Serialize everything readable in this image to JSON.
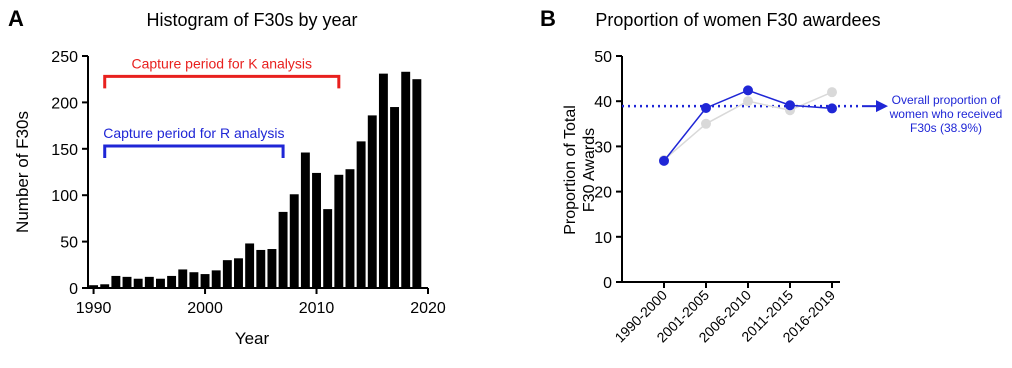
{
  "chart_data": [
    {
      "panel_label": "A",
      "type": "bar",
      "title": "Histogram of F30s by year",
      "xlabel": "Year",
      "ylabel": "Number of F30s",
      "xlim": [
        1989.5,
        2020
      ],
      "ylim": [
        0,
        250
      ],
      "xticks": [
        1990,
        2000,
        2010,
        2020
      ],
      "yticks": [
        0,
        50,
        100,
        150,
        200,
        250
      ],
      "x": [
        1990,
        1991,
        1992,
        1993,
        1994,
        1995,
        1996,
        1997,
        1998,
        1999,
        2000,
        2001,
        2002,
        2003,
        2004,
        2005,
        2006,
        2007,
        2008,
        2009,
        2010,
        2011,
        2012,
        2013,
        2014,
        2015,
        2016,
        2017,
        2018,
        2019
      ],
      "values": [
        3,
        4,
        13,
        12,
        10,
        12,
        10,
        13,
        20,
        17,
        15,
        19,
        30,
        32,
        48,
        41,
        42,
        82,
        101,
        146,
        124,
        85,
        122,
        128,
        158,
        186,
        231,
        195,
        233,
        225
      ],
      "color": "#000000",
      "annotations": [
        {
          "text": "Capture period for K analysis",
          "color": "#e8201e",
          "x_start": 1991,
          "x_end": 2012,
          "y": 228
        },
        {
          "text": "Capture period for R analysis",
          "color": "#1f26d6",
          "x_start": 1991,
          "x_end": 2007,
          "y": 153
        }
      ]
    },
    {
      "panel_label": "B",
      "type": "line",
      "title": "Proportion of women F30 awardees",
      "ylabel_lines": [
        "Proportion of Total",
        "F30 Awards"
      ],
      "ylim": [
        0,
        50
      ],
      "yticks": [
        0,
        10,
        20,
        30,
        40,
        50
      ],
      "categories": [
        "1990-2000",
        "2001-2005",
        "2006-2010",
        "2011-2015",
        "2016-2019"
      ],
      "series": [
        {
          "values": [
            27,
            35,
            40,
            38,
            42
          ],
          "color": "#d9d9d9"
        },
        {
          "values": [
            26.8,
            38.5,
            42.4,
            39.1,
            38.4
          ],
          "color": "#1f26d6"
        }
      ],
      "reference_line": {
        "y": 38.9,
        "color": "#1f26d6",
        "label_lines": [
          "Overall proportion of",
          "women who received",
          "F30s (38.9%)"
        ]
      }
    }
  ]
}
